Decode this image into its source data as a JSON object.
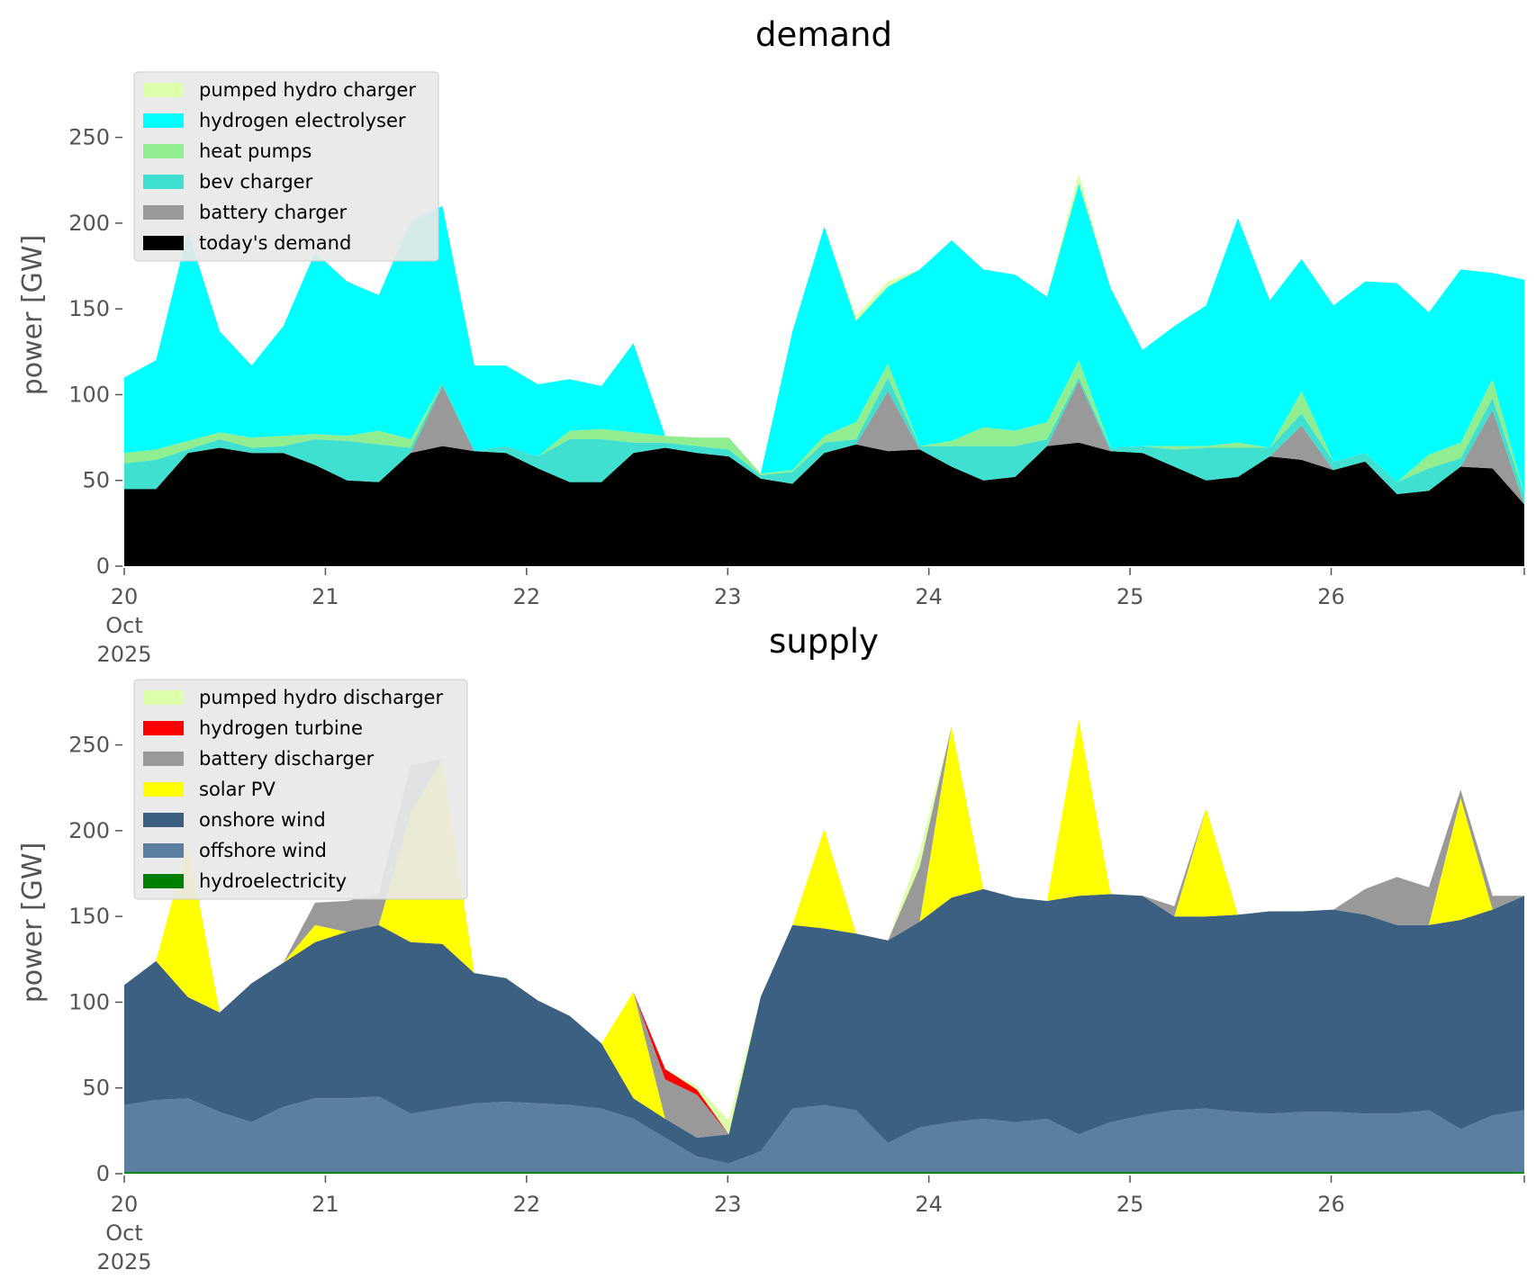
{
  "chart_data": [
    {
      "type": "area",
      "stacked": true,
      "title": "demand",
      "ylabel": "power [GW]",
      "xlabel": "",
      "ylim": [
        0,
        275
      ],
      "xlim": [
        0,
        6.96
      ],
      "yticks": [
        0,
        50,
        100,
        150,
        200,
        250
      ],
      "xticks": [
        {
          "value": 0,
          "label": [
            "20",
            "Oct",
            "2025"
          ]
        },
        {
          "value": 1,
          "label": [
            "21"
          ]
        },
        {
          "value": 2,
          "label": [
            "22"
          ]
        },
        {
          "value": 3,
          "label": [
            "23"
          ]
        },
        {
          "value": 4,
          "label": [
            "24"
          ]
        },
        {
          "value": 5,
          "label": [
            "25"
          ]
        },
        {
          "value": 6,
          "label": [
            "26"
          ]
        }
      ],
      "x_unit": "days since 20 Oct 2025 (0.25 day steps)",
      "legend_position": "upper-left",
      "series": [
        {
          "name": "today's demand",
          "color": "#000000",
          "values": [
            45,
            45,
            66,
            69,
            66,
            66,
            59,
            50,
            49,
            66,
            70,
            67,
            66,
            57,
            49,
            49,
            66,
            69,
            66,
            64,
            51,
            48,
            66,
            71,
            67,
            68,
            58,
            50,
            52,
            70,
            72,
            67,
            66,
            58,
            50,
            52,
            64,
            62,
            56,
            61,
            42,
            44,
            58,
            57,
            36
          ]
        },
        {
          "name": "battery charger",
          "color": "#999999",
          "values": [
            0,
            0,
            0,
            0,
            0,
            0,
            0,
            0,
            0,
            0,
            35,
            0,
            0,
            0,
            0,
            0,
            0,
            0,
            0,
            0,
            0,
            0,
            0,
            0,
            35,
            0,
            0,
            0,
            0,
            0,
            36,
            0,
            0,
            0,
            0,
            0,
            0,
            20,
            0,
            0,
            0,
            0,
            0,
            34,
            0
          ]
        },
        {
          "name": "bev charger",
          "color": "#40E0D0",
          "values": [
            15,
            17,
            2,
            5,
            3,
            4,
            15,
            23,
            22,
            3,
            2,
            0,
            4,
            7,
            25,
            25,
            6,
            3,
            4,
            4,
            2,
            7,
            6,
            3,
            8,
            2,
            12,
            20,
            18,
            4,
            2,
            2,
            4,
            10,
            19,
            17,
            5,
            7,
            5,
            5,
            7,
            13,
            5,
            7,
            6
          ]
        },
        {
          "name": "heat pumps",
          "color": "#90EE90",
          "values": [
            6,
            6,
            5,
            4,
            6,
            6,
            3,
            3,
            8,
            5,
            0,
            0,
            0,
            0,
            5,
            6,
            6,
            4,
            5,
            7,
            1,
            1,
            4,
            10,
            8,
            0,
            3,
            11,
            9,
            10,
            10,
            0,
            0,
            2,
            1,
            3,
            0,
            13,
            0,
            0,
            0,
            8,
            9,
            11,
            0
          ]
        },
        {
          "name": "hydrogen electrolyser",
          "color": "#00FFFF",
          "values": [
            44,
            52,
            122,
            59,
            42,
            64,
            106,
            90,
            79,
            127,
            103,
            50,
            47,
            42,
            30,
            25,
            52,
            0,
            0,
            0,
            0,
            81,
            122,
            59,
            45,
            103,
            117,
            92,
            91,
            73,
            103,
            93,
            56,
            70,
            82,
            131,
            86,
            77,
            91,
            100,
            116,
            83,
            101,
            62,
            125
          ]
        },
        {
          "name": "pumped hydro charger",
          "color": "#DDFFAA",
          "values": [
            0,
            0,
            0,
            0,
            0,
            0,
            0,
            0,
            0,
            0,
            0,
            0,
            0,
            0,
            0,
            0,
            0,
            0,
            0,
            0,
            0,
            0,
            0,
            3,
            3,
            0,
            0,
            0,
            0,
            0,
            6,
            0,
            0,
            0,
            0,
            0,
            0,
            0,
            0,
            0,
            0,
            0,
            0,
            0,
            0
          ]
        }
      ]
    },
    {
      "type": "area",
      "stacked": true,
      "title": "supply",
      "ylabel": "power [GW]",
      "xlabel": "",
      "ylim": [
        0,
        275
      ],
      "xlim": [
        0,
        6.96
      ],
      "yticks": [
        0,
        50,
        100,
        150,
        200,
        250
      ],
      "xticks": [
        {
          "value": 0,
          "label": [
            "20",
            "Oct",
            "2025"
          ]
        },
        {
          "value": 1,
          "label": [
            "21"
          ]
        },
        {
          "value": 2,
          "label": [
            "22"
          ]
        },
        {
          "value": 3,
          "label": [
            "23"
          ]
        },
        {
          "value": 4,
          "label": [
            "24"
          ]
        },
        {
          "value": 5,
          "label": [
            "25"
          ]
        },
        {
          "value": 6,
          "label": [
            "26"
          ]
        }
      ],
      "x_unit": "days since 20 Oct 2025 (0.25 day steps)",
      "legend_position": "upper-left",
      "series": [
        {
          "name": "hydroelectricity",
          "color": "#008000",
          "values": [
            1,
            1,
            1,
            1,
            1,
            1,
            1,
            1,
            1,
            1,
            1,
            1,
            1,
            1,
            1,
            1,
            1,
            1,
            1,
            1,
            1,
            1,
            1,
            1,
            1,
            1,
            1,
            1,
            1,
            1,
            1,
            1,
            1,
            1,
            1,
            1,
            1,
            1,
            1,
            1,
            1,
            1,
            1,
            1,
            1
          ]
        },
        {
          "name": "offshore wind",
          "color": "#5A7FA1",
          "values": [
            39,
            42,
            43,
            35,
            29,
            38,
            43,
            43,
            44,
            34,
            37,
            40,
            41,
            40,
            39,
            37,
            31,
            20,
            9,
            5,
            12,
            37,
            39,
            36,
            17,
            26,
            29,
            31,
            29,
            31,
            22,
            29,
            33,
            36,
            37,
            35,
            34,
            35,
            35,
            34,
            34,
            36,
            25,
            33,
            36
          ]
        },
        {
          "name": "onshore wind",
          "color": "#3B6082",
          "values": [
            70,
            81,
            59,
            58,
            81,
            84,
            91,
            97,
            100,
            100,
            96,
            76,
            72,
            60,
            52,
            38,
            12,
            11,
            11,
            17,
            90,
            107,
            103,
            103,
            118,
            120,
            131,
            134,
            131,
            127,
            139,
            133,
            128,
            113,
            112,
            115,
            118,
            117,
            118,
            116,
            110,
            108,
            122,
            120,
            125
          ]
        },
        {
          "name": "solar PV",
          "color": "#FFFF00",
          "values": [
            0,
            0,
            90,
            0,
            0,
            0,
            10,
            0,
            0,
            75,
            108,
            0,
            0,
            0,
            0,
            0,
            62,
            0,
            0,
            0,
            0,
            0,
            58,
            0,
            0,
            0,
            100,
            0,
            0,
            0,
            103,
            0,
            0,
            0,
            63,
            0,
            0,
            0,
            0,
            0,
            0,
            0,
            71,
            0,
            0
          ]
        },
        {
          "name": "battery discharger",
          "color": "#999999",
          "values": [
            0,
            0,
            0,
            0,
            0,
            0,
            13,
            18,
            18,
            28,
            0,
            0,
            0,
            0,
            0,
            0,
            0,
            23,
            25,
            0,
            0,
            0,
            0,
            0,
            0,
            32,
            0,
            0,
            0,
            0,
            0,
            0,
            0,
            6,
            0,
            0,
            0,
            0,
            0,
            15,
            28,
            22,
            5,
            8,
            0
          ]
        },
        {
          "name": "hydrogen turbine",
          "color": "#FF0000",
          "values": [
            0,
            0,
            0,
            0,
            0,
            0,
            0,
            0,
            0,
            0,
            0,
            0,
            0,
            0,
            0,
            0,
            0,
            6,
            3,
            0,
            0,
            0,
            0,
            0,
            0,
            0,
            0,
            0,
            0,
            0,
            0,
            0,
            0,
            0,
            0,
            0,
            0,
            0,
            0,
            0,
            0,
            0,
            0,
            0,
            0
          ]
        },
        {
          "name": "pumped hydro discharger",
          "color": "#DDFFAA",
          "values": [
            0,
            0,
            0,
            0,
            0,
            0,
            0,
            0,
            0,
            0,
            0,
            0,
            0,
            0,
            0,
            0,
            0,
            0,
            2,
            8,
            0,
            0,
            0,
            0,
            0,
            9,
            0,
            0,
            0,
            0,
            0,
            0,
            0,
            0,
            0,
            0,
            0,
            0,
            0,
            0,
            0,
            0,
            0,
            0,
            0
          ]
        }
      ]
    }
  ]
}
